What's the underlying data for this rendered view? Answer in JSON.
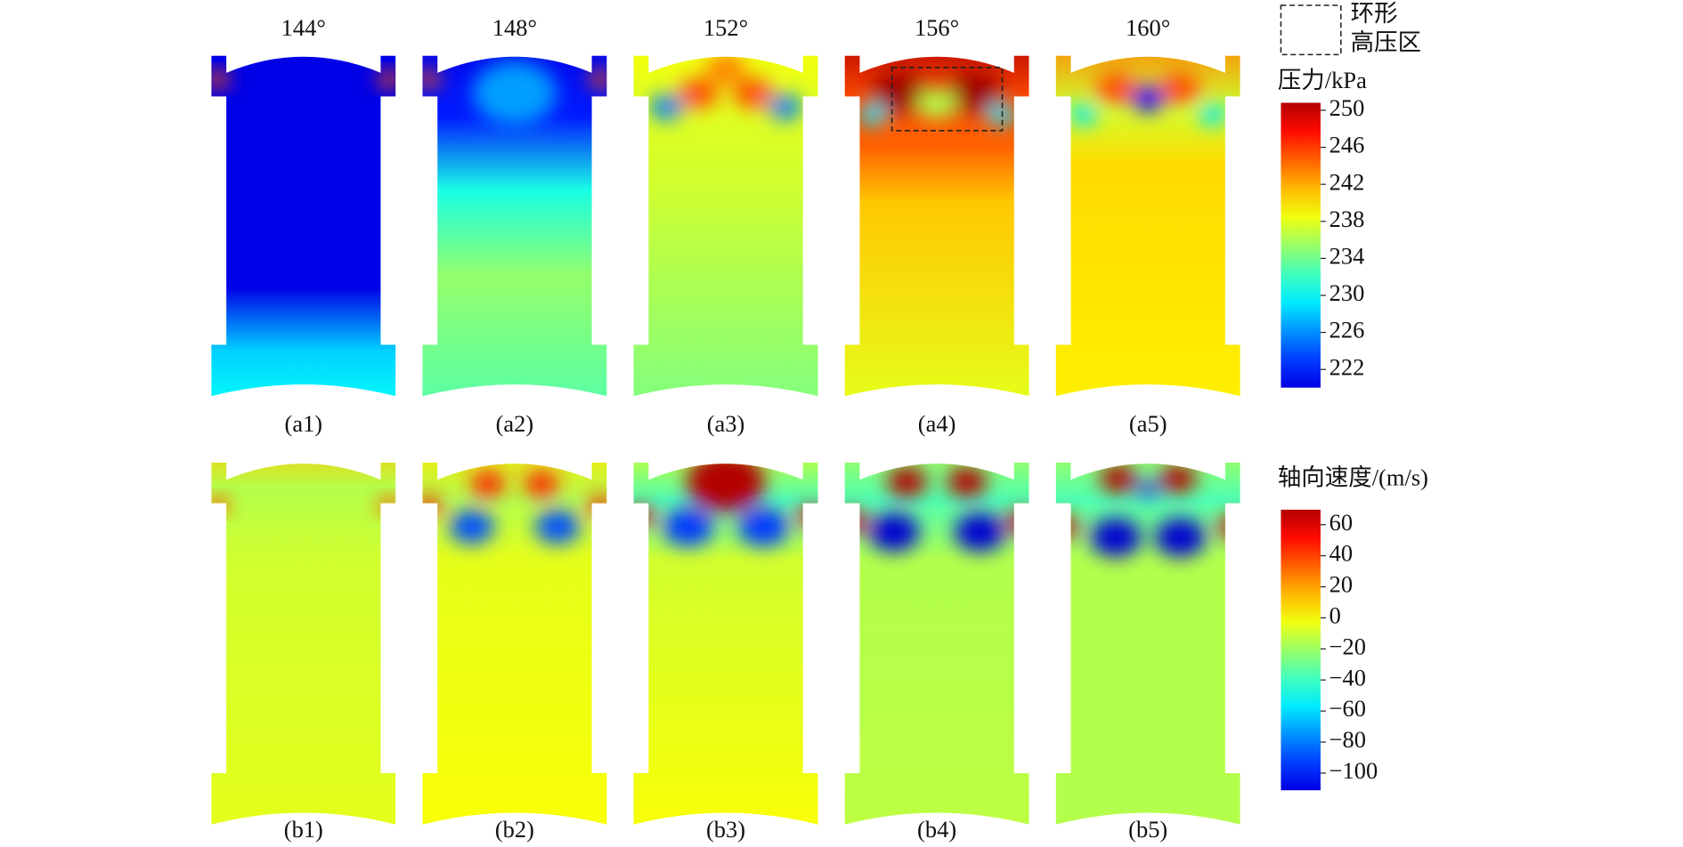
{
  "columns": [
    "144°",
    "148°",
    "152°",
    "156°",
    "160°"
  ],
  "top_row": {
    "panels": [
      "(a1)",
      "(a2)",
      "(a3)",
      "(a4)",
      "(a5)"
    ]
  },
  "bottom_row": {
    "panels": [
      "(b1)",
      "(b2)",
      "(b3)",
      "(b4)",
      "(b5)"
    ]
  },
  "annotation": {
    "labels": [
      "环形",
      "高压区"
    ]
  },
  "pressure_colorbar": {
    "title": "压力/kPa",
    "ticks": [
      250,
      246,
      242,
      238,
      234,
      230,
      226,
      222
    ]
  },
  "velocity_colorbar": {
    "title": "轴向速度/(m/s)",
    "ticks": [
      60,
      40,
      20,
      0,
      {
        "value": -20,
        "label": "−20"
      },
      {
        "value": -40,
        "label": "−40"
      },
      {
        "value": -60,
        "label": "−60"
      },
      {
        "value": -80,
        "label": "−80"
      },
      {
        "value": -100,
        "label": "−100"
      }
    ]
  }
}
